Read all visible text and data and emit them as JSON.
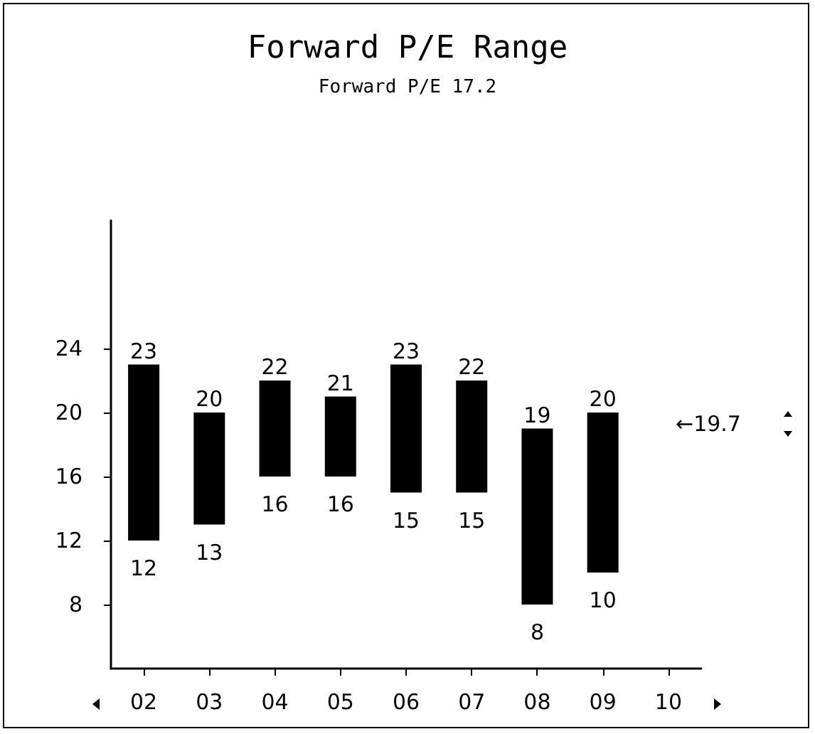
{
  "chart_data": {
    "type": "bar",
    "title": "Forward P/E Range",
    "subtitle": "Forward P/E 17.2",
    "categories": [
      "02",
      "03",
      "04",
      "05",
      "06",
      "07",
      "08",
      "09",
      "10"
    ],
    "base": [
      12,
      13,
      16,
      16,
      15,
      15,
      8,
      10,
      null
    ],
    "values": [
      11,
      7,
      6,
      5,
      8,
      7,
      11,
      10,
      null
    ],
    "color": "#000000",
    "ylim": [
      4,
      32
    ],
    "yticks": [
      8,
      12,
      16,
      20,
      24
    ],
    "grid": false,
    "annotations": [
      {
        "text": "23",
        "x": "02",
        "y": 23
      },
      {
        "text": "12",
        "x": "02",
        "y": 12
      },
      {
        "text": "20",
        "x": "03",
        "y": 20
      },
      {
        "text": "13",
        "x": "03",
        "y": 13
      },
      {
        "text": "22",
        "x": "04",
        "y": 22
      },
      {
        "text": "16",
        "x": "04",
        "y": 16
      },
      {
        "text": "21",
        "x": "05",
        "y": 21
      },
      {
        "text": "16",
        "x": "05",
        "y": 16
      },
      {
        "text": "23",
        "x": "06",
        "y": 23
      },
      {
        "text": "15",
        "x": "06",
        "y": 15
      },
      {
        "text": "22",
        "x": "07",
        "y": 22
      },
      {
        "text": "15",
        "x": "07",
        "y": 15
      },
      {
        "text": "19",
        "x": "08",
        "y": 19
      },
      {
        "text": "8",
        "x": "08",
        "y": 8
      },
      {
        "text": "20",
        "x": "09",
        "y": 20
      },
      {
        "text": "10",
        "x": "09",
        "y": 10
      },
      "←19.7"
    ]
  }
}
